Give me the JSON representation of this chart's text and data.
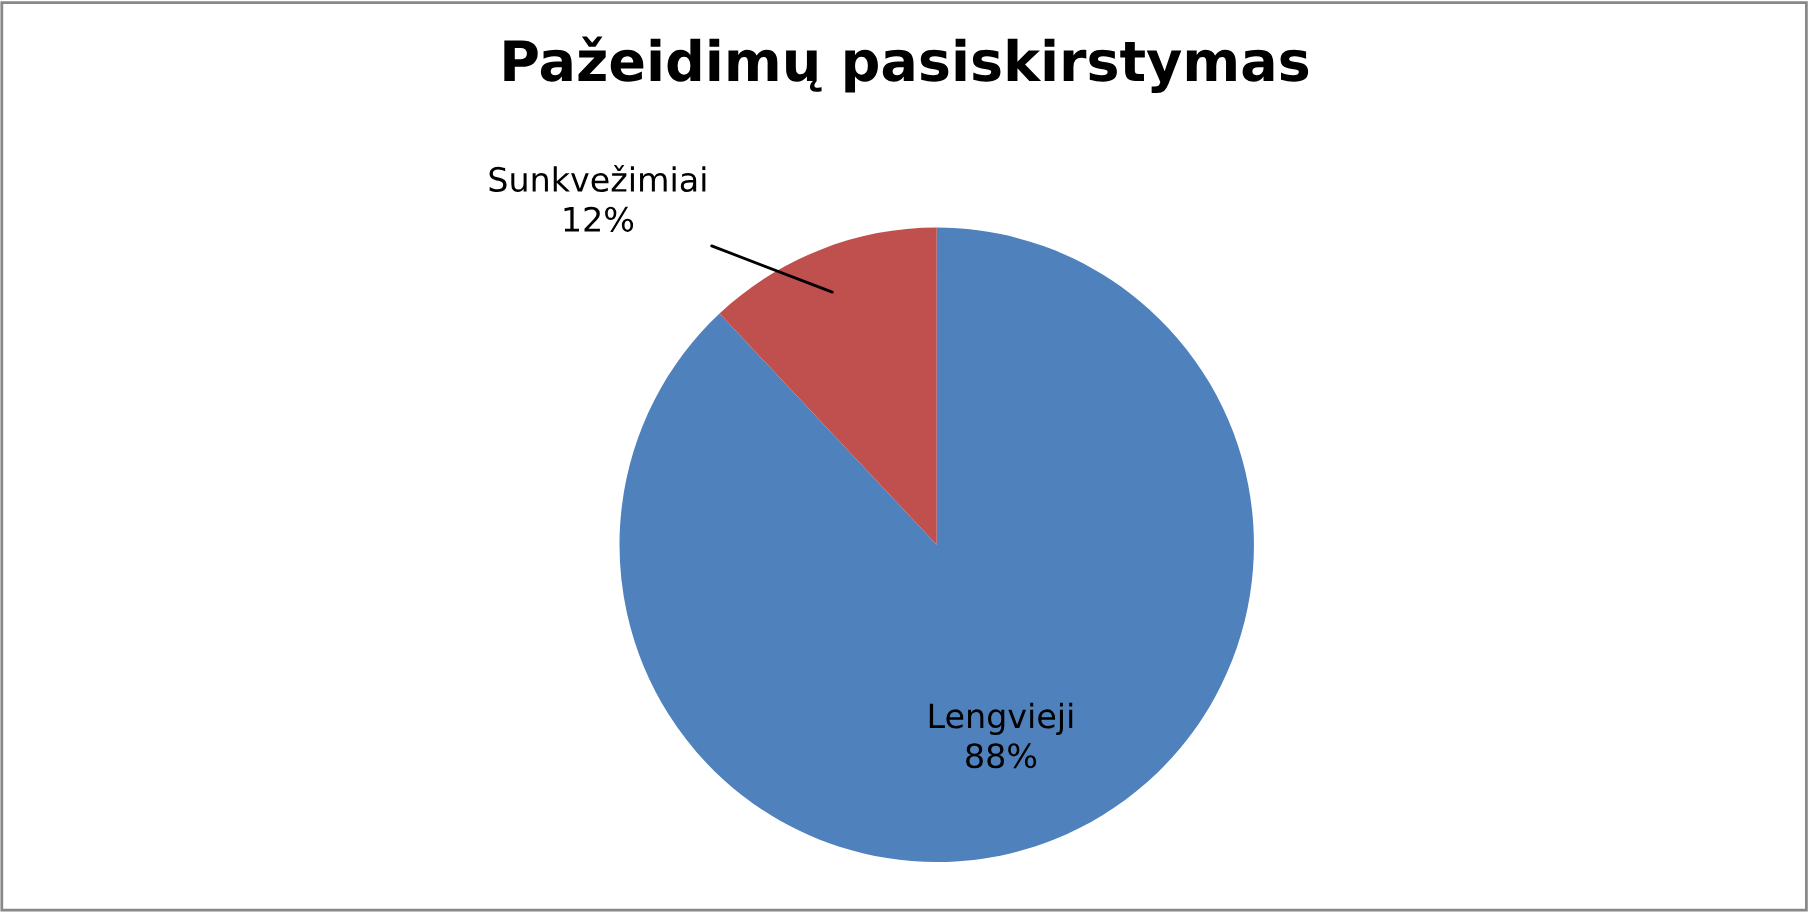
{
  "chart_data": {
    "type": "pie",
    "title": "Pažeidimų pasiskirstymas",
    "categories": [
      "Lengvieji",
      "Sunkvežimiai"
    ],
    "values": [
      88,
      12
    ],
    "colors": [
      "#4f81bd",
      "#c0504d"
    ],
    "value_labels": [
      "88%",
      "12%"
    ],
    "legend": false
  }
}
